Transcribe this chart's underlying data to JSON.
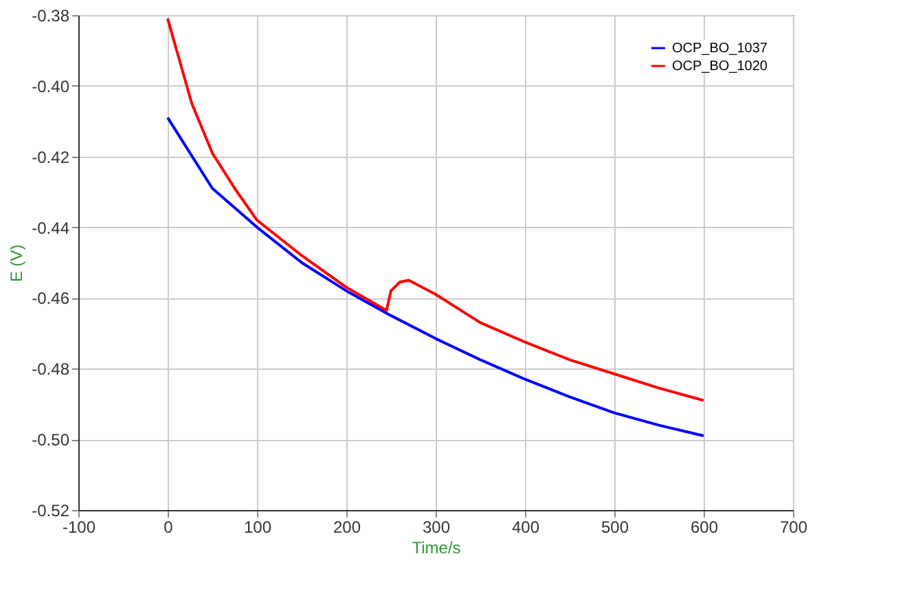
{
  "chart_data": {
    "type": "line",
    "xlabel": "Time/s",
    "ylabel": "E (V)",
    "xlim": [
      -100,
      700
    ],
    "xticks": [
      -100,
      0,
      100,
      200,
      300,
      400,
      500,
      600,
      700
    ],
    "ylim": [
      -0.52,
      -0.38
    ],
    "yticks": [
      {
        "value": -0.52,
        "label": "-0.52"
      },
      {
        "value": -0.5,
        "label": "-0.50"
      },
      {
        "value": -0.48,
        "label": "-0.48"
      },
      {
        "value": -0.46,
        "label": "-0.46"
      },
      {
        "value": -0.44,
        "label": "-0.44"
      },
      {
        "value": -0.42,
        "label": "-0.42"
      },
      {
        "value": -0.4,
        "label": "-0.40"
      },
      {
        "value": -0.38,
        "label": "-0.38"
      }
    ],
    "grid": true,
    "legend": "top right",
    "series": [
      {
        "name": "OCP_BO_1037",
        "color": "#0000ff",
        "x": [
          0,
          50,
          100,
          150,
          200,
          250,
          300,
          350,
          400,
          450,
          500,
          550,
          600
        ],
        "values": [
          -0.409,
          -0.429,
          -0.44,
          -0.45,
          -0.458,
          -0.465,
          -0.4715,
          -0.4775,
          -0.483,
          -0.488,
          -0.4925,
          -0.496,
          -0.499
        ]
      },
      {
        "name": "OCP_BO_1020",
        "color": "#ff0000",
        "x": [
          0,
          27,
          50,
          75,
          100,
          150,
          200,
          245,
          250,
          260,
          270,
          300,
          350,
          400,
          450,
          500,
          550,
          600
        ],
        "values": [
          -0.381,
          -0.405,
          -0.419,
          -0.429,
          -0.438,
          -0.448,
          -0.457,
          -0.4635,
          -0.458,
          -0.4555,
          -0.455,
          -0.459,
          -0.467,
          -0.4725,
          -0.4775,
          -0.4815,
          -0.4855,
          -0.489
        ]
      }
    ]
  }
}
